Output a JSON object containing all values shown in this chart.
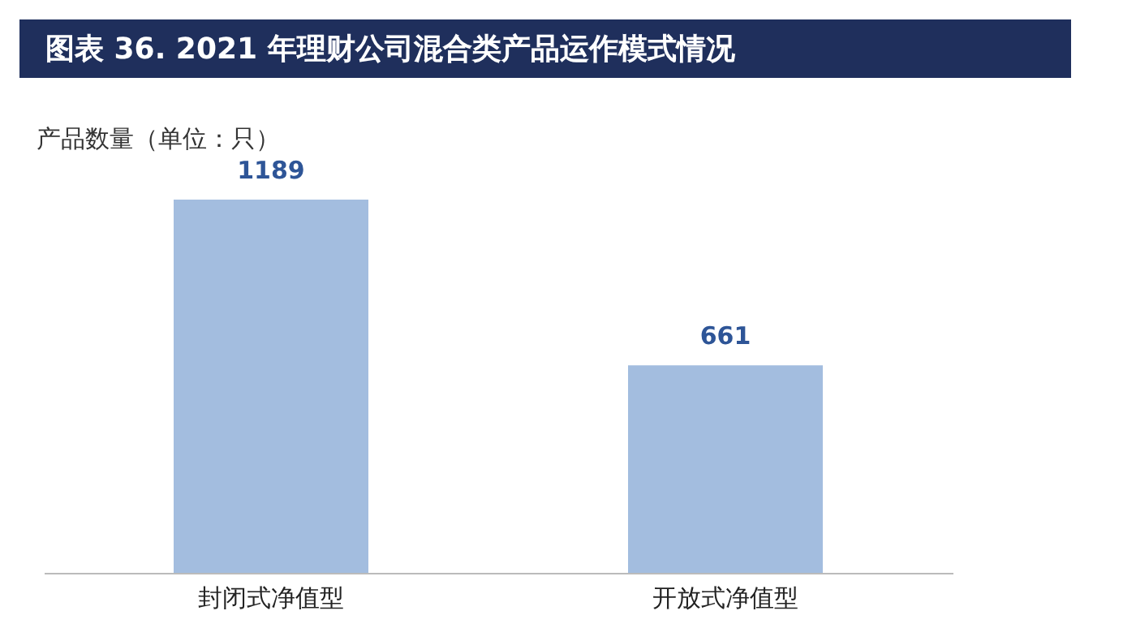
{
  "chart_data": {
    "type": "bar",
    "title": "图表 36. 2021 年理财公司混合类产品运作模式情况",
    "ylabel": "产品数量（单位：只）",
    "categories": [
      "封闭式净值型",
      "开放式净值型"
    ],
    "values": [
      1189,
      661
    ],
    "color": "#a3bddf",
    "data_labels": true,
    "tick_labels": "x",
    "grid": false
  }
}
